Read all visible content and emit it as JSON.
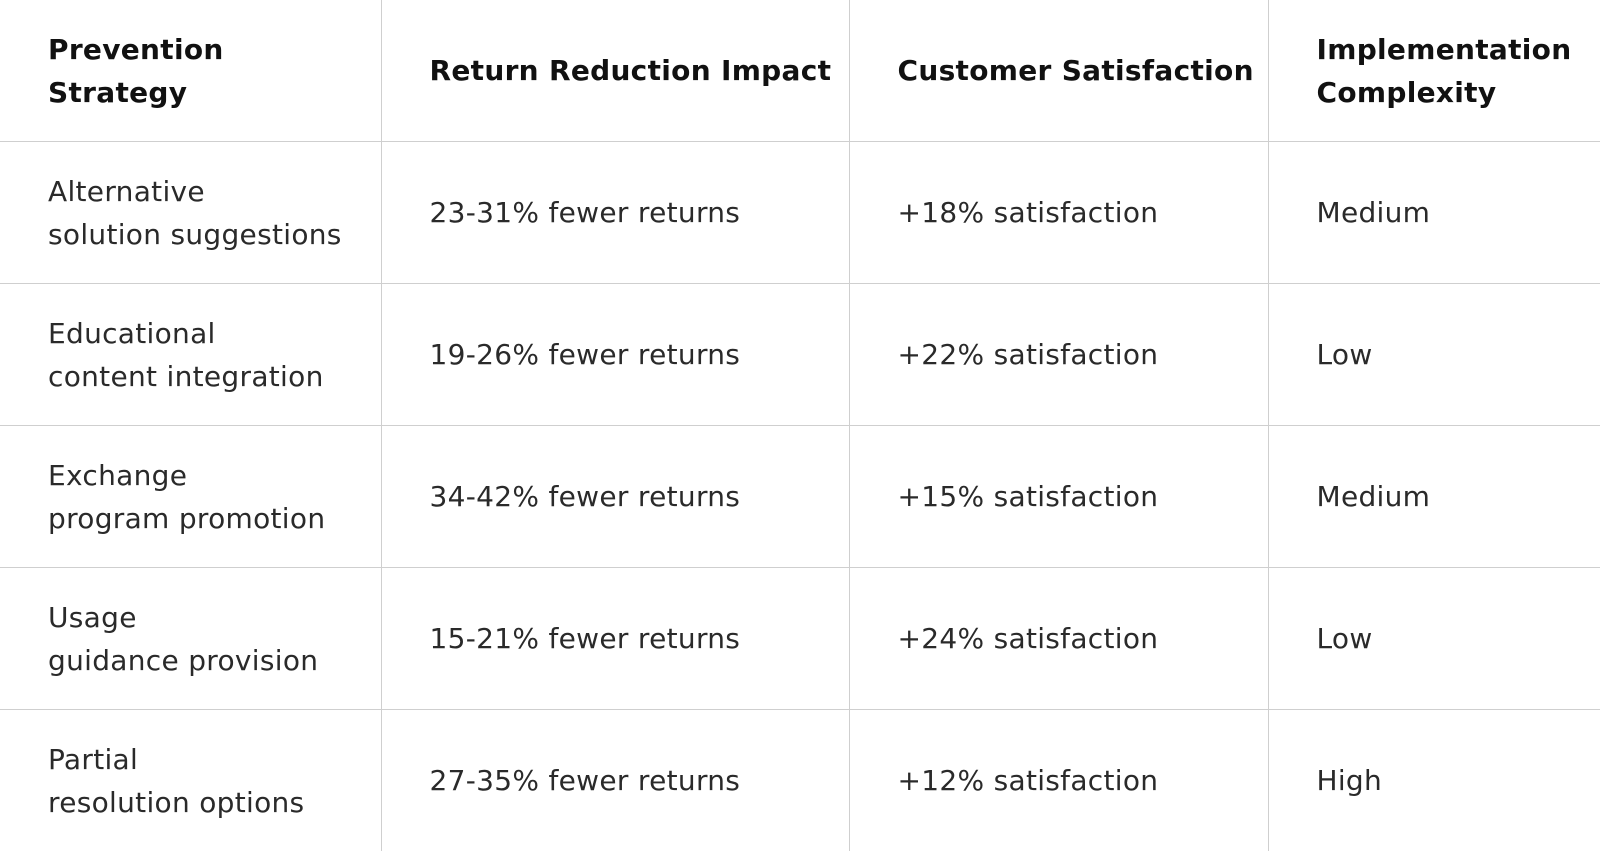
{
  "table": {
    "header": [
      "Prevention\nStrategy",
      "Return Reduction Impact",
      "Customer Satisfaction",
      "Implementation\nComplexity"
    ],
    "rows": [
      [
        "Alternative\nsolution suggestions",
        "23-31% fewer returns",
        "+18% satisfaction",
        "Medium"
      ],
      [
        "Educational\ncontent integration",
        "19-26% fewer returns",
        "+22% satisfaction",
        "Low"
      ],
      [
        "Exchange\nprogram promotion",
        "34-42% fewer returns",
        "+15% satisfaction",
        "Medium"
      ],
      [
        "Usage\nguidance provision",
        "15-21% fewer returns",
        "+24% satisfaction",
        "Low"
      ],
      [
        "Partial\nresolution options",
        "27-35% fewer returns",
        "+12% satisfaction",
        "High"
      ]
    ]
  }
}
